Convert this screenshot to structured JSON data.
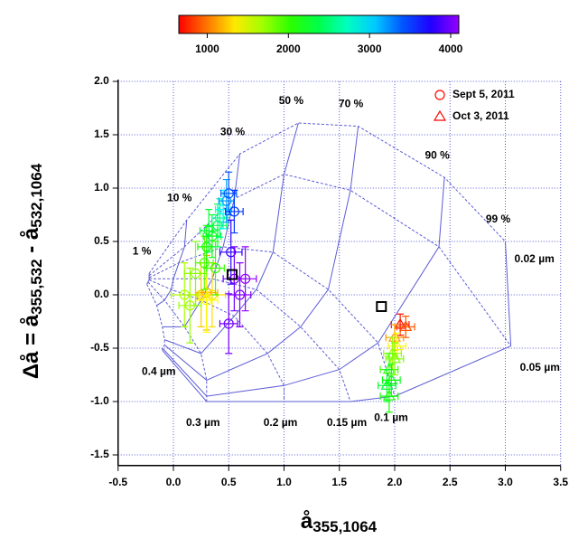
{
  "chart_data": {
    "type": "scatter",
    "xlabel": {
      "main": "å",
      "sub": "355,1064"
    },
    "ylabel": {
      "main": [
        "Δå = å",
        " - å"
      ],
      "sub": [
        "355,532",
        "532,1064"
      ]
    },
    "xlim": [
      -0.5,
      3.5
    ],
    "ylim": [
      -1.6,
      2.0
    ],
    "xticks": [
      {
        "value": -0.5,
        "label": "-0.5"
      },
      {
        "value": 0,
        "label": "0.0"
      },
      {
        "value": 0.5,
        "label": "0.5"
      },
      {
        "value": 1,
        "label": "1.0"
      },
      {
        "value": 1.5,
        "label": "1.5"
      },
      {
        "value": 2,
        "label": "2.0"
      },
      {
        "value": 2.5,
        "label": "2.5"
      },
      {
        "value": 3,
        "label": "3.0"
      },
      {
        "value": 3.5,
        "label": "3.5"
      }
    ],
    "yticks": [
      {
        "value": -1.5,
        "label": "-1.5"
      },
      {
        "value": -1,
        "label": "-1.0"
      },
      {
        "value": -0.5,
        "label": "-0.5"
      },
      {
        "value": 0,
        "label": "0.0"
      },
      {
        "value": 0.5,
        "label": "0.5"
      },
      {
        "value": 1,
        "label": "1.0"
      },
      {
        "value": 1.5,
        "label": "1.5"
      },
      {
        "value": 2,
        "label": "2.0"
      }
    ],
    "grid": true,
    "grid_color": "#5b5bd6",
    "colorbar": {
      "clim": [
        650,
        4100
      ],
      "ticks": [
        1000,
        2000,
        3000,
        4000
      ]
    },
    "legend": "top-right",
    "series": [
      {
        "name": "Sept 5, 2011",
        "marker": "circle",
        "color": "#ff0000",
        "x": [
          0.25,
          0.3,
          0.35,
          0.3,
          0.1,
          0.15,
          0.2,
          0.28,
          0.3,
          0.35,
          0.4,
          0.42,
          0.45,
          0.48,
          0.5,
          0.55,
          0.52,
          0.55,
          0.6,
          0.65,
          0.5,
          0.38,
          0.32
        ],
        "y": [
          0.0,
          0.02,
          0.0,
          -0.05,
          0.0,
          -0.1,
          0.2,
          0.3,
          0.45,
          0.55,
          0.65,
          0.72,
          0.8,
          0.88,
          0.95,
          0.78,
          0.4,
          0.15,
          0.0,
          0.15,
          -0.27,
          0.25,
          0.6
        ],
        "c": [
          1250,
          1150,
          1300,
          1400,
          1650,
          1700,
          1750,
          1900,
          2100,
          2200,
          2400,
          2600,
          2900,
          3200,
          3400,
          3500,
          3800,
          4000,
          4050,
          4100,
          4000,
          2000,
          2300
        ],
        "xerr": [
          0.1,
          0.1,
          0.12,
          0.1,
          0.12,
          0.1,
          0.1,
          0.08,
          0.08,
          0.08,
          0.08,
          0.07,
          0.07,
          0.07,
          0.07,
          0.08,
          0.1,
          0.1,
          0.1,
          0.1,
          0.08,
          0.08,
          0.08
        ],
        "yerr": [
          0.3,
          0.35,
          0.3,
          0.3,
          0.3,
          0.35,
          0.3,
          0.25,
          0.2,
          0.2,
          0.2,
          0.18,
          0.18,
          0.2,
          0.2,
          0.2,
          0.3,
          0.3,
          0.3,
          0.3,
          0.28,
          0.25,
          0.2
        ]
      },
      {
        "name": "Oct 3, 2011",
        "marker": "triangle",
        "color": "#ff0000",
        "x": [
          2.05,
          2.1,
          2.0,
          2.02,
          1.98,
          1.95,
          1.97,
          1.93,
          1.95,
          2.0
        ],
        "y": [
          -0.28,
          -0.3,
          -0.4,
          -0.48,
          -0.55,
          -0.7,
          -0.8,
          -0.85,
          -0.95,
          -0.6
        ],
        "c": [
          700,
          900,
          1100,
          1400,
          1700,
          2000,
          2200,
          2300,
          2100,
          1800
        ],
        "xerr": [
          0.08,
          0.08,
          0.08,
          0.08,
          0.08,
          0.08,
          0.08,
          0.08,
          0.08,
          0.08
        ],
        "yerr": [
          0.1,
          0.1,
          0.12,
          0.12,
          0.15,
          0.15,
          0.15,
          0.15,
          0.15,
          0.15
        ]
      }
    ],
    "squares": {
      "x": [
        0.53,
        1.88
      ],
      "y": [
        0.19,
        -0.11
      ]
    },
    "model": {
      "fractions": [
        "1 %",
        "10 %",
        "30 %",
        "50 %",
        "70 %",
        "90 %",
        "99 %"
      ],
      "radii": [
        {
          "label": "0.02  µm",
          "points": [
            [
              -0.22,
              0.2
            ],
            [
              0.12,
              0.7
            ],
            [
              0.6,
              1.32
            ],
            [
              1.13,
              1.61
            ],
            [
              1.67,
              1.58
            ],
            [
              2.45,
              1.1
            ],
            [
              3.0,
              0.5
            ]
          ]
        },
        {
          "label": "0.05  µm",
          "points": [
            [
              -0.22,
              0.18
            ],
            [
              0.1,
              0.45
            ],
            [
              0.55,
              0.9
            ],
            [
              1.0,
              1.13
            ],
            [
              1.6,
              0.98
            ],
            [
              2.4,
              0.45
            ],
            [
              3.05,
              -0.48
            ]
          ]
        },
        {
          "label": "0.1  µm",
          "points": [
            [
              -0.22,
              0.16
            ],
            [
              0.05,
              0.3
            ],
            [
              0.45,
              0.45
            ],
            [
              0.9,
              0.4
            ],
            [
              1.4,
              0.05
            ],
            [
              1.85,
              -0.45
            ],
            [
              2.0,
              -0.95
            ]
          ]
        },
        {
          "label": "0.15  µm",
          "points": [
            [
              -0.22,
              0.15
            ],
            [
              0.0,
              0.15
            ],
            [
              0.35,
              0.15
            ],
            [
              0.75,
              0.05
            ],
            [
              1.15,
              -0.3
            ],
            [
              1.5,
              -0.7
            ],
            [
              1.6,
              -1.0
            ]
          ]
        },
        {
          "label": "0.2  µm",
          "points": [
            [
              -0.22,
              0.14
            ],
            [
              -0.02,
              0.05
            ],
            [
              0.25,
              -0.05
            ],
            [
              0.55,
              -0.2
            ],
            [
              0.85,
              -0.55
            ],
            [
              1.0,
              -0.85
            ],
            [
              1.0,
              -1.0
            ]
          ]
        },
        {
          "label": "0.3  µm",
          "points": [
            [
              -0.23,
              0.12
            ],
            [
              -0.08,
              -0.05
            ],
            [
              0.1,
              -0.3
            ],
            [
              0.25,
              -0.55
            ],
            [
              0.3,
              -0.8
            ],
            [
              0.3,
              -0.95
            ],
            [
              0.3,
              -1.0
            ]
          ]
        },
        {
          "label": "0.4  µm",
          "points": [
            [
              -0.24,
              0.1
            ],
            [
              -0.15,
              -0.1
            ],
            [
              -0.1,
              -0.3
            ],
            [
              -0.08,
              -0.42
            ],
            [
              -0.08,
              -0.47
            ],
            [
              -0.1,
              -0.5
            ],
            [
              -0.1,
              -0.52
            ]
          ]
        }
      ]
    }
  }
}
